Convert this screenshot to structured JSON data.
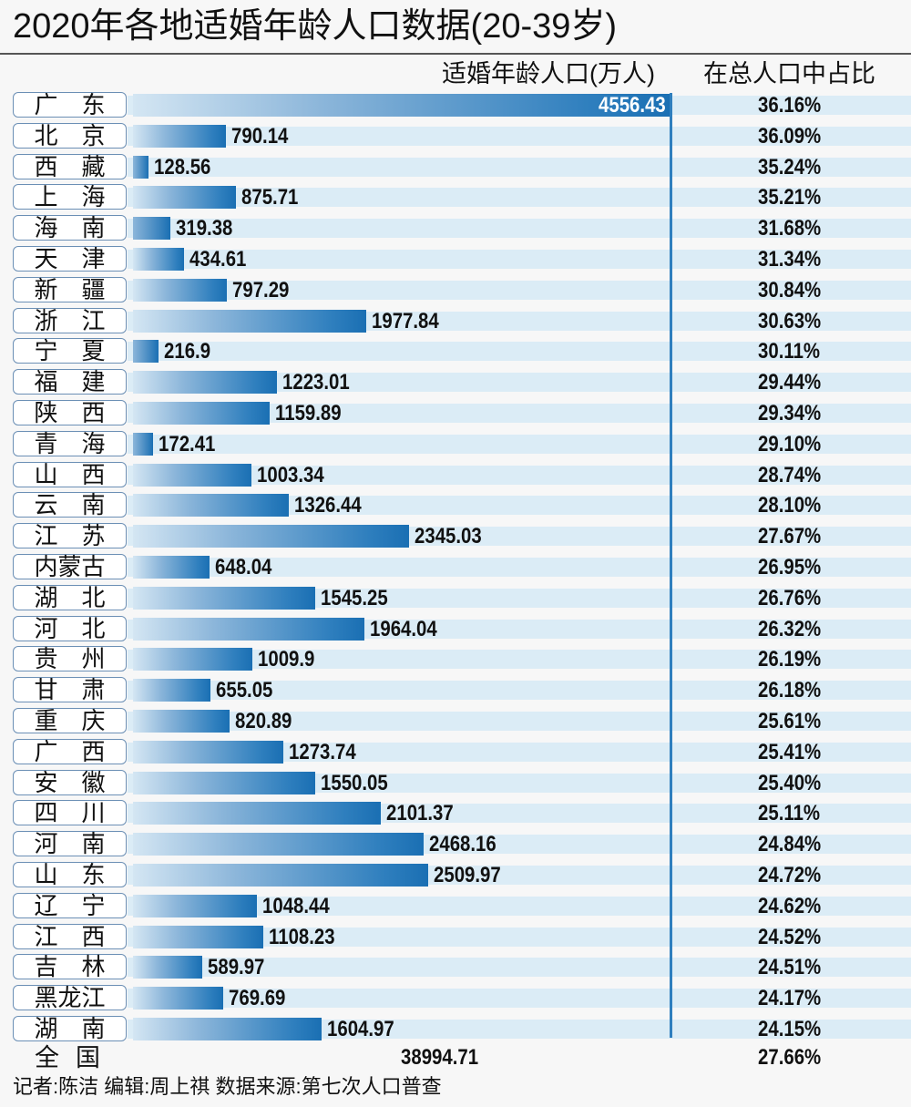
{
  "chart_data": {
    "type": "bar",
    "orientation": "horizontal",
    "title": "2020年各地适婚年龄人口数据(20-39岁)",
    "column_headers": {
      "population": "适婚年龄人口(万人)",
      "share": "在总人口中占比"
    },
    "unit": "万人",
    "categories": [
      "广　东",
      "北　京",
      "西　藏",
      "上　海",
      "海　南",
      "天　津",
      "新　疆",
      "浙　江",
      "宁　夏",
      "福　建",
      "陕　西",
      "青　海",
      "山　西",
      "云　南",
      "江　苏",
      "内蒙古",
      "湖　北",
      "河　北",
      "贵　州",
      "甘　肃",
      "重　庆",
      "广　西",
      "安　徽",
      "四　川",
      "河　南",
      "山　东",
      "辽　宁",
      "江　西",
      "吉　林",
      "黑龙江",
      "湖　南"
    ],
    "values": [
      4556.43,
      790.14,
      128.56,
      875.71,
      319.38,
      434.61,
      797.29,
      1977.84,
      216.9,
      1223.01,
      1159.89,
      172.41,
      1003.34,
      1326.44,
      2345.03,
      648.04,
      1545.25,
      1964.04,
      1009.9,
      655.05,
      820.89,
      1273.74,
      1550.05,
      2101.37,
      2468.16,
      2509.97,
      1048.44,
      1108.23,
      589.97,
      769.69,
      1604.97
    ],
    "value_labels": [
      "4556.43",
      "790.14",
      "128.56",
      "875.71",
      "319.38",
      "434.61",
      "797.29",
      "1977.84",
      "216.9",
      "1223.01",
      "1159.89",
      "172.41",
      "1003.34",
      "1326.44",
      "2345.03",
      "648.04",
      "1545.25",
      "1964.04",
      "1009.9",
      "655.05",
      "820.89",
      "1273.74",
      "1550.05",
      "2101.37",
      "2468.16",
      "2509.97",
      "1048.44",
      "1108.23",
      "589.97",
      "769.69",
      "1604.97"
    ],
    "share_labels": [
      "36.16%",
      "36.09%",
      "35.24%",
      "35.21%",
      "31.68%",
      "31.34%",
      "30.84%",
      "30.63%",
      "30.11%",
      "29.44%",
      "29.34%",
      "29.10%",
      "28.74%",
      "28.10%",
      "27.67%",
      "26.95%",
      "26.76%",
      "26.32%",
      "26.19%",
      "26.18%",
      "25.61%",
      "25.41%",
      "25.40%",
      "25.11%",
      "24.84%",
      "24.72%",
      "24.62%",
      "24.52%",
      "24.51%",
      "24.17%",
      "24.15%"
    ],
    "xlim": [
      0,
      4556.43
    ],
    "total": {
      "label": "全国",
      "value": "38994.71",
      "share": "27.66%"
    },
    "bar_color": "#1a6fb3",
    "stripe_color": "#dbecf6"
  },
  "footer": {
    "credits": "记者:陈洁  编辑:周上祺  数据来源:第七次人口普查"
  }
}
